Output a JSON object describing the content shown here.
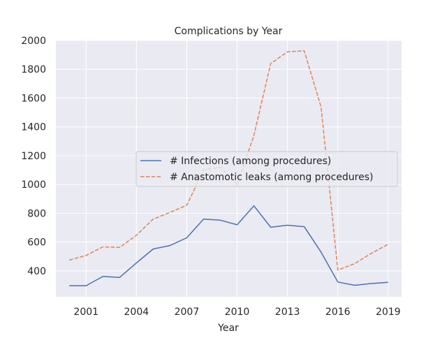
{
  "chart_data": {
    "type": "line",
    "title": "Complications by Year",
    "xlabel": "Year",
    "ylabel": "",
    "xlim": [
      1999.2,
      2019.8
    ],
    "ylim": [
      220,
      2000
    ],
    "x_ticks": [
      2001,
      2004,
      2007,
      2010,
      2013,
      2016,
      2019
    ],
    "y_ticks": [
      400,
      600,
      800,
      1000,
      1200,
      1400,
      1600,
      1800,
      2000
    ],
    "grid": true,
    "legend_position": "center-right",
    "x": [
      2000,
      2001,
      2002,
      2003,
      2004,
      2005,
      2006,
      2007,
      2008,
      2009,
      2010,
      2011,
      2012,
      2013,
      2014,
      2015,
      2016,
      2017,
      2018,
      2019
    ],
    "series": [
      {
        "name": "# Infections (among procedures)",
        "style": "solid",
        "color": "#4c72b0",
        "values": [
          297,
          297,
          361,
          355,
          455,
          552,
          576,
          630,
          760,
          752,
          720,
          852,
          703,
          717,
          707,
          530,
          323,
          300,
          312,
          321
        ]
      },
      {
        "name": "# Anastomotic leaks (among procedures)",
        "style": "dashed",
        "color": "#dd8452",
        "values": [
          475,
          507,
          567,
          563,
          648,
          760,
          806,
          856,
          1100,
          1120,
          1000,
          1340,
          1840,
          1922,
          1928,
          1538,
          406,
          450,
          522,
          585
        ]
      }
    ]
  }
}
